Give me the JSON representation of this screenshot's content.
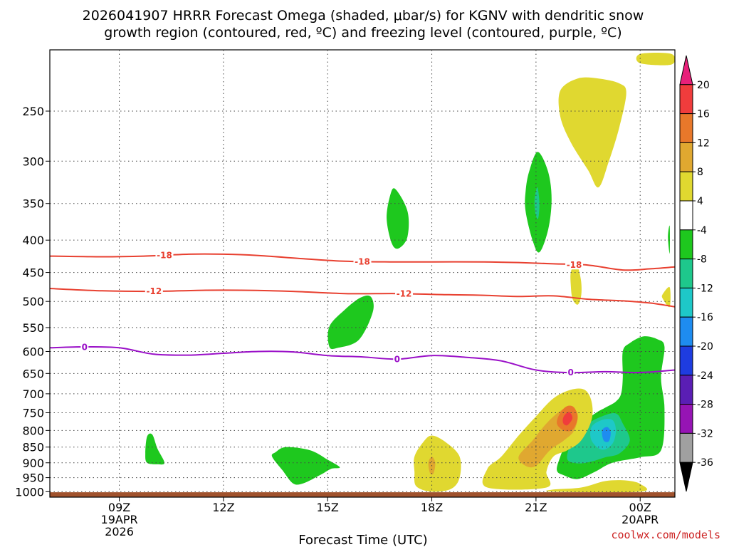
{
  "title": {
    "line1": "2026041907 HRRR Forecast Omega (shaded, μbar/s) for KGNV with dendritic snow",
    "line2": "growth region (contoured, red, ºC) and freezing level (contoured, purple, ºC)"
  },
  "credit": "coolwx.com/models",
  "chart_data": {
    "type": "time-height cross section",
    "xlabel": "Forecast Time (UTC)",
    "x_ticks": [
      {
        "hour": 9,
        "lines": [
          "09Z",
          "19APR",
          "2026"
        ]
      },
      {
        "hour": 12,
        "lines": [
          "12Z"
        ]
      },
      {
        "hour": 15,
        "lines": [
          "15Z"
        ]
      },
      {
        "hour": 18,
        "lines": [
          "18Z"
        ]
      },
      {
        "hour": 21,
        "lines": [
          "21Z"
        ]
      },
      {
        "hour": 24,
        "lines": [
          "00Z",
          "20APR"
        ]
      }
    ],
    "xlim": [
      7,
      25
    ],
    "ylabel": "",
    "y_ticks": [
      250,
      300,
      350,
      400,
      450,
      500,
      550,
      600,
      650,
      700,
      750,
      800,
      850,
      900,
      950,
      1000
    ],
    "ylim_hPa": [
      1020,
      200
    ],
    "y_scale": "log-pressure",
    "grid": "dotted",
    "colorbar": {
      "ticks": [
        20,
        16,
        12,
        8,
        4,
        -4,
        -8,
        -12,
        -16,
        -20,
        -24,
        -28,
        -32,
        -36
      ],
      "bins": [
        {
          "range": [
            20,
            24
          ],
          "color": "#e8207a"
        },
        {
          "range": [
            16,
            20
          ],
          "color": "#f03c3c"
        },
        {
          "range": [
            12,
            16
          ],
          "color": "#e8782a"
        },
        {
          "range": [
            8,
            12
          ],
          "color": "#e0a830"
        },
        {
          "range": [
            4,
            8
          ],
          "color": "#e0d830"
        },
        {
          "range": [
            -4,
            4
          ],
          "color": "#ffffff"
        },
        {
          "range": [
            -8,
            -4
          ],
          "color": "#1ec81e"
        },
        {
          "range": [
            -12,
            -8
          ],
          "color": "#1ec88c"
        },
        {
          "range": [
            -16,
            -12
          ],
          "color": "#1ec8c8"
        },
        {
          "range": [
            -20,
            -16
          ],
          "color": "#1e8cf0"
        },
        {
          "range": [
            -24,
            -20
          ],
          "color": "#1e3ce0"
        },
        {
          "range": [
            -28,
            -24
          ],
          "color": "#5a1eb4"
        },
        {
          "range": [
            -32,
            -28
          ],
          "color": "#9614b4"
        },
        {
          "range": [
            -36,
            -32
          ],
          "color": "#a0a0a0"
        },
        {
          "range": [
            -40,
            -36
          ],
          "color": "#000000"
        }
      ]
    },
    "contours": [
      {
        "name": "-18",
        "label": "-18",
        "color": "#e84030",
        "points": [
          [
            7.0,
            424
          ],
          [
            8.5,
            425
          ],
          [
            9.7,
            424
          ],
          [
            11.0,
            421
          ],
          [
            12.0,
            421
          ],
          [
            13.0,
            423
          ],
          [
            14.3,
            428
          ],
          [
            15.5,
            432
          ],
          [
            16.8,
            433
          ],
          [
            18.0,
            433
          ],
          [
            19.5,
            433
          ],
          [
            20.5,
            434
          ],
          [
            21.5,
            436
          ],
          [
            22.5,
            438
          ],
          [
            23.5,
            446
          ],
          [
            24.3,
            444
          ],
          [
            25.0,
            441
          ]
        ],
        "label_at": [
          [
            10.3,
            422
          ],
          [
            16.0,
            432
          ],
          [
            22.1,
            437
          ]
        ]
      },
      {
        "name": "-12",
        "label": "-12",
        "color": "#e84030",
        "points": [
          [
            7.0,
            477
          ],
          [
            8.5,
            481
          ],
          [
            10.0,
            482
          ],
          [
            11.5,
            480
          ],
          [
            12.5,
            480
          ],
          [
            14.0,
            482
          ],
          [
            15.5,
            486
          ],
          [
            17.0,
            486
          ],
          [
            18.5,
            488
          ],
          [
            19.5,
            489
          ],
          [
            20.5,
            491
          ],
          [
            21.5,
            490
          ],
          [
            22.5,
            496
          ],
          [
            23.5,
            499
          ],
          [
            24.3,
            503
          ],
          [
            25.0,
            510
          ]
        ],
        "label_at": [
          [
            10.0,
            481
          ],
          [
            17.2,
            486
          ]
        ]
      },
      {
        "name": "0",
        "label": "0",
        "color": "#9a10c8",
        "points": [
          [
            7.0,
            592
          ],
          [
            8.0,
            590
          ],
          [
            9.0,
            592
          ],
          [
            10.0,
            606
          ],
          [
            11.0,
            608
          ],
          [
            12.0,
            604
          ],
          [
            13.0,
            600
          ],
          [
            14.0,
            601
          ],
          [
            15.0,
            609
          ],
          [
            16.0,
            612
          ],
          [
            17.0,
            617
          ],
          [
            18.0,
            609
          ],
          [
            19.0,
            613
          ],
          [
            20.0,
            621
          ],
          [
            21.0,
            642
          ],
          [
            22.0,
            648
          ],
          [
            23.0,
            646
          ],
          [
            24.0,
            648
          ],
          [
            25.0,
            642
          ]
        ],
        "label_at": [
          [
            8.0,
            590
          ],
          [
            17.0,
            617
          ],
          [
            22.0,
            647
          ]
        ]
      }
    ],
    "omega_regions": [
      {
        "value": 6,
        "points": [
          [
            24.0,
            203
          ],
          [
            24.9,
            203
          ],
          [
            24.9,
            211
          ],
          [
            24.0,
            210
          ]
        ]
      },
      {
        "value": 6,
        "points": [
          [
            21.7,
            232
          ],
          [
            22.2,
            222
          ],
          [
            22.8,
            222
          ],
          [
            23.4,
            226
          ],
          [
            23.6,
            234
          ],
          [
            23.4,
            265
          ],
          [
            23.1,
            300
          ],
          [
            22.8,
            330
          ],
          [
            22.5,
            310
          ],
          [
            22.0,
            280
          ],
          [
            21.7,
            255
          ]
        ]
      },
      {
        "value": 6,
        "points": [
          [
            22.1,
            438
          ],
          [
            22.2,
            440
          ],
          [
            22.3,
            465
          ],
          [
            22.3,
            490
          ],
          [
            22.2,
            506
          ],
          [
            22.05,
            495
          ],
          [
            22.0,
            470
          ],
          [
            22.0,
            450
          ]
        ]
      },
      {
        "value": 6,
        "points": [
          [
            24.85,
            475
          ],
          [
            24.65,
            487
          ],
          [
            24.65,
            495
          ],
          [
            24.85,
            510
          ]
        ]
      },
      {
        "value": -6,
        "points": [
          [
            24.85,
            380
          ],
          [
            24.8,
            395
          ],
          [
            24.85,
            420
          ]
        ]
      },
      {
        "value": -6,
        "points": [
          [
            20.8,
            312
          ],
          [
            21.05,
            290
          ],
          [
            21.35,
            312
          ],
          [
            21.45,
            345
          ],
          [
            21.35,
            385
          ],
          [
            21.1,
            418
          ],
          [
            20.9,
            400
          ],
          [
            20.7,
            360
          ],
          [
            20.7,
            335
          ]
        ]
      },
      {
        "value": -10,
        "points": [
          [
            20.96,
            345
          ],
          [
            21.04,
            330
          ],
          [
            21.1,
            350
          ],
          [
            21.06,
            370
          ],
          [
            20.98,
            362
          ]
        ]
      },
      {
        "value": -6,
        "points": [
          [
            16.8,
            340
          ],
          [
            16.95,
            332
          ],
          [
            17.3,
            360
          ],
          [
            17.3,
            395
          ],
          [
            17.05,
            412
          ],
          [
            16.85,
            405
          ],
          [
            16.7,
            370
          ]
        ]
      },
      {
        "value": -6,
        "points": [
          [
            15.05,
            548
          ],
          [
            15.5,
            515
          ],
          [
            15.95,
            493
          ],
          [
            16.25,
            492
          ],
          [
            16.3,
            520
          ],
          [
            15.9,
            575
          ],
          [
            15.3,
            592
          ],
          [
            15.05,
            590
          ]
        ]
      },
      {
        "value": -6,
        "points": [
          [
            23.5,
            600
          ],
          [
            23.7,
            582
          ],
          [
            24.1,
            568
          ],
          [
            24.5,
            574
          ],
          [
            24.7,
            590
          ],
          [
            24.6,
            660
          ],
          [
            24.7,
            740
          ],
          [
            24.6,
            860
          ],
          [
            24.0,
            882
          ],
          [
            23.2,
            900
          ],
          [
            22.7,
            930
          ],
          [
            22.2,
            955
          ],
          [
            21.8,
            942
          ],
          [
            21.6,
            925
          ],
          [
            21.7,
            880
          ],
          [
            21.9,
            830
          ],
          [
            22.2,
            790
          ],
          [
            22.7,
            752
          ],
          [
            23.0,
            736
          ],
          [
            23.3,
            720
          ],
          [
            23.45,
            700
          ],
          [
            23.5,
            660
          ]
        ]
      },
      {
        "value": -10,
        "points": [
          [
            22.2,
            808
          ],
          [
            22.5,
            780
          ],
          [
            22.9,
            760
          ],
          [
            23.3,
            752
          ],
          [
            23.5,
            780
          ],
          [
            23.7,
            830
          ],
          [
            23.4,
            870
          ],
          [
            23.0,
            882
          ],
          [
            22.6,
            896
          ],
          [
            22.2,
            902
          ],
          [
            21.9,
            888
          ],
          [
            22.0,
            840
          ]
        ]
      },
      {
        "value": -14,
        "points": [
          [
            22.6,
            790
          ],
          [
            22.9,
            770
          ],
          [
            23.2,
            770
          ],
          [
            23.3,
            800
          ],
          [
            23.2,
            840
          ],
          [
            22.9,
            858
          ],
          [
            22.6,
            830
          ]
        ]
      },
      {
        "value": -18,
        "points": [
          [
            22.9,
            800
          ],
          [
            23.05,
            790
          ],
          [
            23.15,
            805
          ],
          [
            23.1,
            832
          ],
          [
            22.95,
            830
          ]
        ]
      },
      {
        "value": 6,
        "points": [
          [
            19.6,
            920
          ],
          [
            20.0,
            880
          ],
          [
            20.5,
            815
          ],
          [
            21.0,
            760
          ],
          [
            21.5,
            712
          ],
          [
            22.0,
            690
          ],
          [
            22.4,
            690
          ],
          [
            22.6,
            720
          ],
          [
            22.6,
            770
          ],
          [
            22.3,
            830
          ],
          [
            21.9,
            860
          ],
          [
            21.5,
            880
          ],
          [
            21.3,
            930
          ],
          [
            21.3,
            985
          ],
          [
            19.6,
            985
          ]
        ]
      },
      {
        "value": 10,
        "points": [
          [
            20.5,
            880
          ],
          [
            20.9,
            830
          ],
          [
            21.3,
            780
          ],
          [
            21.7,
            745
          ],
          [
            22.0,
            735
          ],
          [
            22.2,
            755
          ],
          [
            22.1,
            800
          ],
          [
            21.8,
            830
          ],
          [
            21.4,
            860
          ],
          [
            21.0,
            910
          ],
          [
            20.7,
            910
          ]
        ]
      },
      {
        "value": 14,
        "points": [
          [
            21.7,
            750
          ],
          [
            21.9,
            732
          ],
          [
            22.1,
            736
          ],
          [
            22.2,
            765
          ],
          [
            22.05,
            798
          ],
          [
            21.8,
            800
          ],
          [
            21.6,
            780
          ]
        ]
      },
      {
        "value": 18,
        "points": [
          [
            21.8,
            760
          ],
          [
            21.95,
            748
          ],
          [
            22.05,
            765
          ],
          [
            21.9,
            785
          ],
          [
            21.78,
            778
          ]
        ]
      },
      {
        "value": 6,
        "points": [
          [
            17.5,
            880
          ],
          [
            17.75,
            835
          ],
          [
            18.0,
            815
          ],
          [
            18.4,
            835
          ],
          [
            18.8,
            880
          ],
          [
            18.8,
            950
          ],
          [
            18.55,
            990
          ],
          [
            18.0,
            1000
          ],
          [
            17.55,
            980
          ],
          [
            17.5,
            930
          ]
        ]
      },
      {
        "value": 10,
        "points": [
          [
            17.9,
            900
          ],
          [
            18.0,
            880
          ],
          [
            18.1,
            900
          ],
          [
            18.05,
            935
          ],
          [
            17.95,
            935
          ]
        ]
      },
      {
        "value": 6,
        "points": [
          [
            21.5,
            992
          ],
          [
            22.3,
            985
          ],
          [
            23.0,
            962
          ],
          [
            23.6,
            960
          ],
          [
            24.0,
            972
          ],
          [
            24.0,
            1000
          ],
          [
            21.5,
            1000
          ]
        ]
      },
      {
        "value": -6,
        "points": [
          [
            9.8,
            818
          ],
          [
            9.95,
            812
          ],
          [
            10.1,
            855
          ],
          [
            10.3,
            900
          ],
          [
            10.1,
            905
          ],
          [
            9.8,
            900
          ],
          [
            9.75,
            870
          ]
        ]
      },
      {
        "value": -6,
        "points": [
          [
            13.5,
            866
          ],
          [
            13.8,
            850
          ],
          [
            14.5,
            860
          ],
          [
            15.0,
            890
          ],
          [
            15.35,
            915
          ],
          [
            15.1,
            920
          ],
          [
            14.8,
            940
          ],
          [
            14.3,
            970
          ],
          [
            14.0,
            970
          ],
          [
            13.7,
            925
          ],
          [
            13.4,
            880
          ]
        ]
      }
    ],
    "ground": {
      "from_hPa": 1002,
      "color": "#a0522d"
    }
  }
}
